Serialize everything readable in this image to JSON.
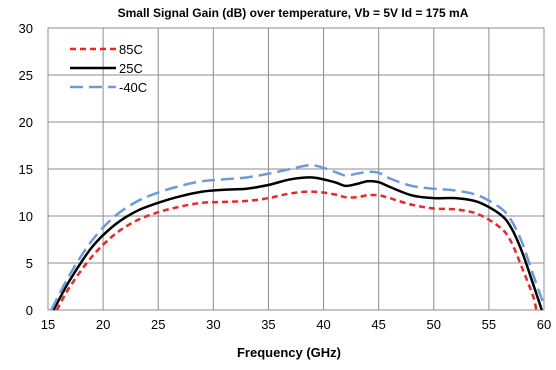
{
  "chart_data": {
    "type": "line",
    "title": "Small Signal Gain (dB) over temperature, Vb = 5V Id = 175 mA",
    "xlabel": "Frequency (GHz)",
    "ylabel": "",
    "xlim": [
      15,
      60
    ],
    "ylim": [
      0,
      30
    ],
    "xticks": [
      15,
      20,
      25,
      30,
      35,
      40,
      45,
      50,
      55,
      60
    ],
    "yticks": [
      0,
      5,
      10,
      15,
      20,
      25,
      30
    ],
    "grid": true,
    "legend_position": "top-left",
    "series": [
      {
        "name": "85C",
        "color": "#e8282a",
        "dash": "dash",
        "points": [
          [
            15.8,
            0
          ],
          [
            17,
            2.5
          ],
          [
            19,
            5.7
          ],
          [
            21,
            8.0
          ],
          [
            23,
            9.5
          ],
          [
            25,
            10.4
          ],
          [
            27,
            11.0
          ],
          [
            29,
            11.4
          ],
          [
            31,
            11.5
          ],
          [
            33,
            11.6
          ],
          [
            35,
            11.9
          ],
          [
            37,
            12.4
          ],
          [
            39,
            12.6
          ],
          [
            41,
            12.3
          ],
          [
            42,
            12.0
          ],
          [
            43,
            12.0
          ],
          [
            44,
            12.2
          ],
          [
            45,
            12.2
          ],
          [
            46,
            11.9
          ],
          [
            48,
            11.2
          ],
          [
            50,
            10.8
          ],
          [
            52,
            10.7
          ],
          [
            54,
            10.2
          ],
          [
            56,
            8.8
          ],
          [
            57,
            7.3
          ],
          [
            58,
            4.5
          ],
          [
            59,
            1.5
          ],
          [
            59.3,
            0
          ]
        ]
      },
      {
        "name": "25C",
        "color": "#000000",
        "dash": "solid",
        "points": [
          [
            15.5,
            0
          ],
          [
            17,
            3.2
          ],
          [
            19,
            6.7
          ],
          [
            21,
            9.0
          ],
          [
            23,
            10.5
          ],
          [
            25,
            11.4
          ],
          [
            27,
            12.1
          ],
          [
            29,
            12.6
          ],
          [
            31,
            12.8
          ],
          [
            33,
            12.9
          ],
          [
            35,
            13.3
          ],
          [
            37,
            13.9
          ],
          [
            39,
            14.1
          ],
          [
            41,
            13.6
          ],
          [
            42,
            13.2
          ],
          [
            43,
            13.4
          ],
          [
            44,
            13.7
          ],
          [
            45,
            13.6
          ],
          [
            46,
            13.1
          ],
          [
            48,
            12.2
          ],
          [
            50,
            11.9
          ],
          [
            52,
            11.9
          ],
          [
            54,
            11.5
          ],
          [
            56,
            10.2
          ],
          [
            57,
            8.8
          ],
          [
            58,
            6.2
          ],
          [
            59,
            2.8
          ],
          [
            59.8,
            0
          ]
        ]
      },
      {
        "name": "-40C",
        "color": "#6f9ad8",
        "dash": "longdash",
        "points": [
          [
            15.3,
            0
          ],
          [
            17,
            3.8
          ],
          [
            19,
            7.4
          ],
          [
            21,
            9.9
          ],
          [
            23,
            11.5
          ],
          [
            25,
            12.5
          ],
          [
            27,
            13.2
          ],
          [
            29,
            13.7
          ],
          [
            31,
            13.9
          ],
          [
            33,
            14.1
          ],
          [
            35,
            14.5
          ],
          [
            37,
            15.0
          ],
          [
            39,
            15.4
          ],
          [
            41,
            14.7
          ],
          [
            42,
            14.3
          ],
          [
            43,
            14.5
          ],
          [
            44,
            14.7
          ],
          [
            45,
            14.6
          ],
          [
            46,
            14.0
          ],
          [
            48,
            13.2
          ],
          [
            50,
            12.9
          ],
          [
            52,
            12.7
          ],
          [
            54,
            12.2
          ],
          [
            56,
            10.9
          ],
          [
            57,
            9.6
          ],
          [
            58,
            7.2
          ],
          [
            59,
            3.8
          ],
          [
            60,
            0.5
          ]
        ]
      }
    ]
  }
}
